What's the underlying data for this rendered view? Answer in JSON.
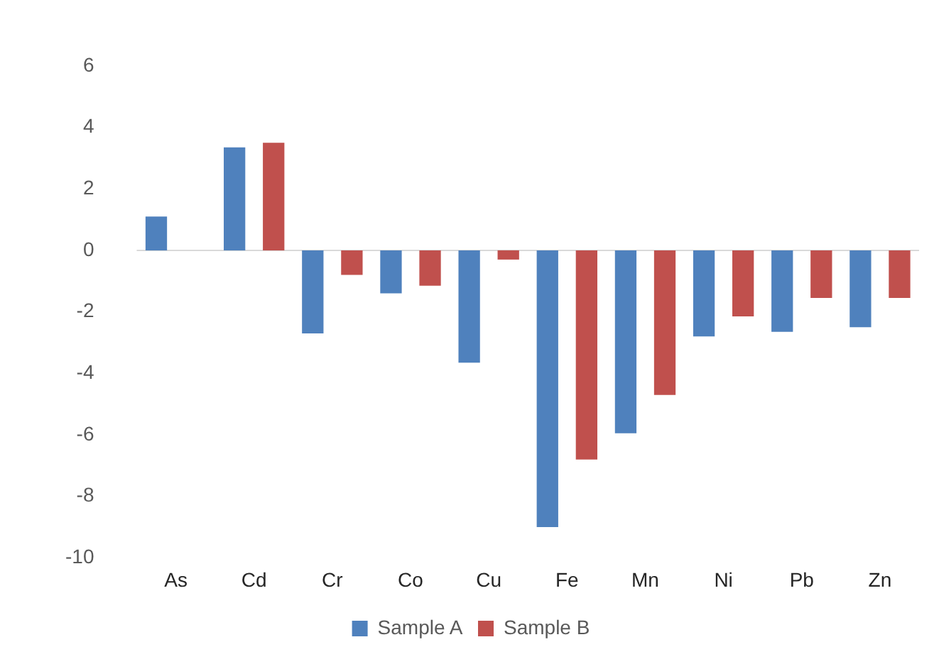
{
  "chart_data": {
    "type": "bar",
    "categories": [
      "As",
      "Cd",
      "Cr",
      "Co",
      "Cu",
      "Fe",
      "Mn",
      "Ni",
      "Pb",
      "Zn"
    ],
    "series": [
      {
        "name": "Sample A",
        "color": "#4f81bd",
        "values": [
          1.1,
          3.35,
          -2.7,
          -1.4,
          -3.65,
          -9.0,
          -5.95,
          -2.8,
          -2.65,
          -2.5
        ]
      },
      {
        "name": "Sample B",
        "color": "#c0504d",
        "values": [
          null,
          3.5,
          -0.8,
          -1.15,
          -0.3,
          -6.8,
          -4.7,
          -2.15,
          -1.55,
          -1.55
        ]
      }
    ],
    "ylim": [
      -10,
      6
    ],
    "yticks": [
      -10,
      -8,
      -6,
      -4,
      -2,
      0,
      2,
      4,
      6
    ],
    "ref_lines": [
      {
        "axis": "y",
        "value": 0,
        "color": "#d9d9d9"
      }
    ],
    "grid": false,
    "legend": "bottom"
  }
}
